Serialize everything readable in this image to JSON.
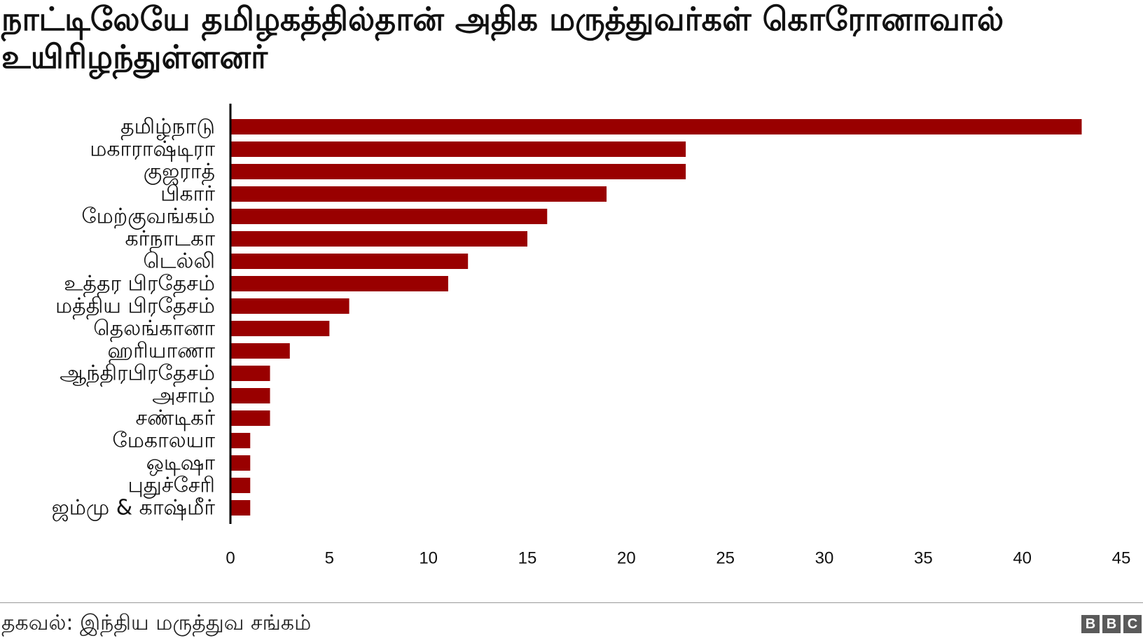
{
  "title": "நாட்டிலேயே தமிழகத்தில்தான் அதிக மருத்துவர்கள் கொரோனாவால் உயிரிழந்துள்ளனர்",
  "source": "தகவல்: இந்திய மருத்துவ சங்கம்",
  "logo_letters": [
    "B",
    "B",
    "C"
  ],
  "colors": {
    "bar": "#990000",
    "axis": "#000000",
    "rule": "#9a9a9a",
    "logo": "#5a5a5a"
  },
  "chart_data": {
    "type": "bar",
    "orientation": "horizontal",
    "categories": [
      "தமிழ்நாடு",
      "மகாராஷ்டிரா",
      "குஜராத்",
      "பிகார்",
      "மேற்குவங்கம்",
      "கர்நாடகா",
      "டெல்லி",
      "உத்தர பிரதேசம்",
      "மத்திய பிரதேசம்",
      "தெலங்கானா",
      "ஹரியாணா",
      "ஆந்திரபிரதேசம்",
      "அசாம்",
      "சண்டிகர்",
      "மேகாலயா",
      "ஒடிஷா",
      "புதுச்சேரி",
      "ஜம்மு & காஷ்மீர்"
    ],
    "values": [
      43,
      23,
      23,
      19,
      16,
      15,
      12,
      11,
      6,
      5,
      3,
      2,
      2,
      2,
      1,
      1,
      1,
      1
    ],
    "xlim": [
      0,
      45
    ],
    "xticks": [
      "0",
      "5",
      "10",
      "15",
      "20",
      "25",
      "30",
      "35",
      "40",
      "45"
    ],
    "grid": false,
    "legend": "none"
  }
}
